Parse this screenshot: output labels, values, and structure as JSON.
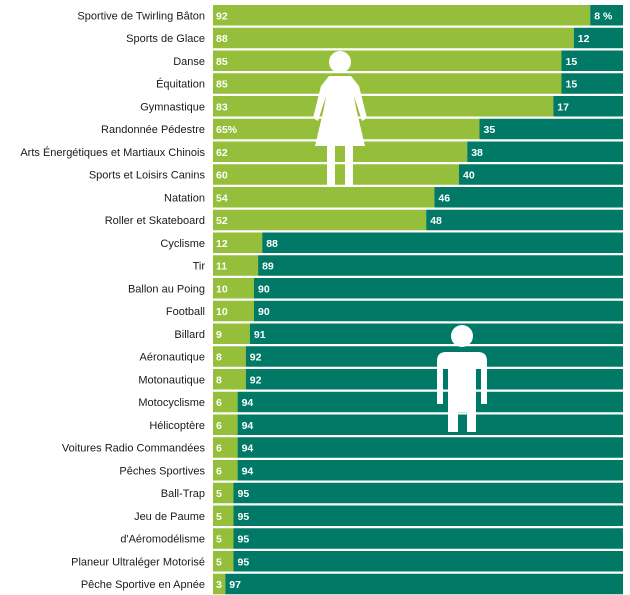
{
  "colors": {
    "female": "#95bf3a",
    "male": "#007a67",
    "label_text": "#1a1a1a",
    "value_text": "#ffffff"
  },
  "icons": {
    "female": "woman-icon",
    "male": "man-icon"
  },
  "chart_data": {
    "type": "bar",
    "orientation": "horizontal",
    "stacked": true,
    "categories": [
      "Sportive de Twirling Bâton",
      "Sports de Glace",
      "Danse",
      "Équitation",
      "Gymnastique",
      "Randonnée Pédestre",
      "Arts Énergétiques et Martiaux Chinois",
      "Sports et Loisirs Canins",
      "Natation",
      "Roller et Skateboard",
      "Cyclisme",
      "Tir",
      "Ballon au Poing",
      "Football",
      "Billard",
      "Aéronautique",
      "Motonautique",
      "Motocyclisme",
      "Hélicoptère",
      "Voitures Radio Commandées",
      "Pêches Sportives",
      "Ball-Trap",
      "Jeu de Paume",
      "d'Aéromodélisme",
      "Planeur Ultraléger Motorisé",
      "Pêche Sportive en Apnée"
    ],
    "series": [
      {
        "values": [
          92,
          88,
          85,
          85,
          83,
          65,
          62,
          60,
          54,
          52,
          12,
          11,
          10,
          10,
          9,
          8,
          8,
          6,
          6,
          6,
          6,
          5,
          5,
          5,
          5,
          3
        ]
      },
      {
        "values": [
          8,
          12,
          15,
          15,
          17,
          35,
          38,
          40,
          46,
          48,
          88,
          89,
          90,
          90,
          91,
          92,
          92,
          94,
          94,
          94,
          94,
          95,
          95,
          95,
          95,
          97
        ]
      }
    ],
    "value_labels": [
      [
        "92",
        "8 %"
      ],
      [
        "88",
        "12"
      ],
      [
        "85",
        "15"
      ],
      [
        "85",
        "15"
      ],
      [
        "83",
        "17"
      ],
      [
        "65%",
        "35"
      ],
      [
        "62",
        "38"
      ],
      [
        "60",
        "40"
      ],
      [
        "54",
        "46"
      ],
      [
        "52",
        "48"
      ],
      [
        "12",
        "88"
      ],
      [
        "11",
        "89"
      ],
      [
        "10",
        "90"
      ],
      [
        "10",
        "90"
      ],
      [
        "9",
        "91"
      ],
      [
        "8",
        "92"
      ],
      [
        "8",
        "92"
      ],
      [
        "6",
        "94"
      ],
      [
        "6",
        "94"
      ],
      [
        "6",
        "94"
      ],
      [
        "6",
        "94"
      ],
      [
        "5",
        "95"
      ],
      [
        "5",
        "95"
      ],
      [
        "5",
        "95"
      ],
      [
        "5",
        "95"
      ],
      [
        "3",
        "97"
      ]
    ],
    "xlim": [
      0,
      100
    ],
    "grid": false,
    "legend": "none"
  }
}
